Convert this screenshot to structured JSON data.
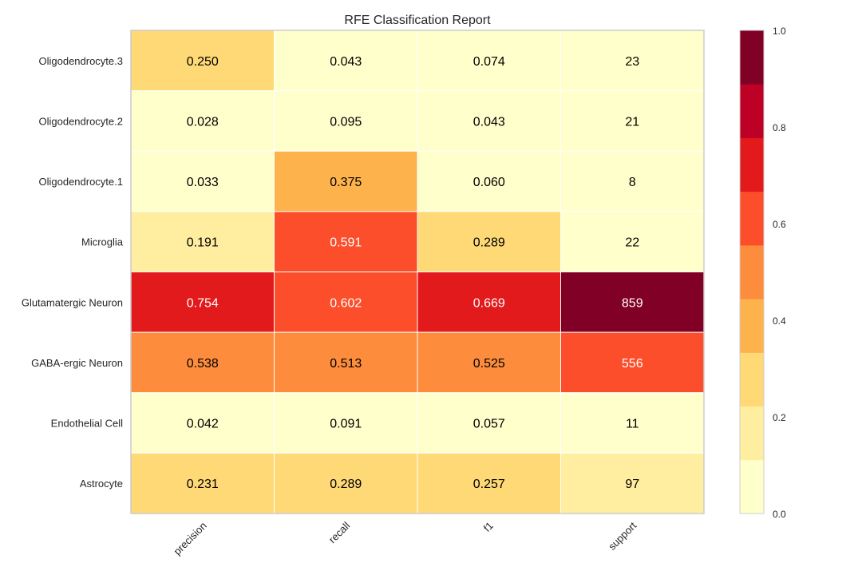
{
  "chart_data": {
    "type": "heatmap",
    "title": "RFE Classification Report",
    "rows": [
      "Oligodendrocyte.3",
      "Oligodendrocyte.2",
      "Oligodendrocyte.1",
      "Microglia",
      "Glutamatergic Neuron",
      "GABA-ergic Neuron",
      "Endothelial Cell",
      "Astrocyte"
    ],
    "columns": [
      "precision",
      "recall",
      "f1",
      "support"
    ],
    "cells": [
      [
        "0.250",
        "0.043",
        "0.074",
        "23"
      ],
      [
        "0.028",
        "0.095",
        "0.043",
        "21"
      ],
      [
        "0.033",
        "0.375",
        "0.060",
        "8"
      ],
      [
        "0.191",
        "0.591",
        "0.289",
        "22"
      ],
      [
        "0.754",
        "0.602",
        "0.669",
        "859"
      ],
      [
        "0.538",
        "0.513",
        "0.525",
        "556"
      ],
      [
        "0.042",
        "0.091",
        "0.057",
        "11"
      ],
      [
        "0.231",
        "0.289",
        "0.257",
        "97"
      ]
    ],
    "support_color_fraction": [
      0.027,
      0.024,
      0.009,
      0.026,
      1.0,
      0.647,
      0.013,
      0.113
    ],
    "colorbar": {
      "range": [
        0.0,
        1.0
      ],
      "ticks": [
        "0.0",
        "0.2",
        "0.4",
        "0.6",
        "0.8",
        "1.0"
      ],
      "bins": 9,
      "colors": [
        "#ffffcc",
        "#ffeda0",
        "#fed976",
        "#feb24c",
        "#fd8d3c",
        "#fc4e2a",
        "#e31a1c",
        "#bd0026",
        "#800026"
      ]
    },
    "grid": true
  }
}
